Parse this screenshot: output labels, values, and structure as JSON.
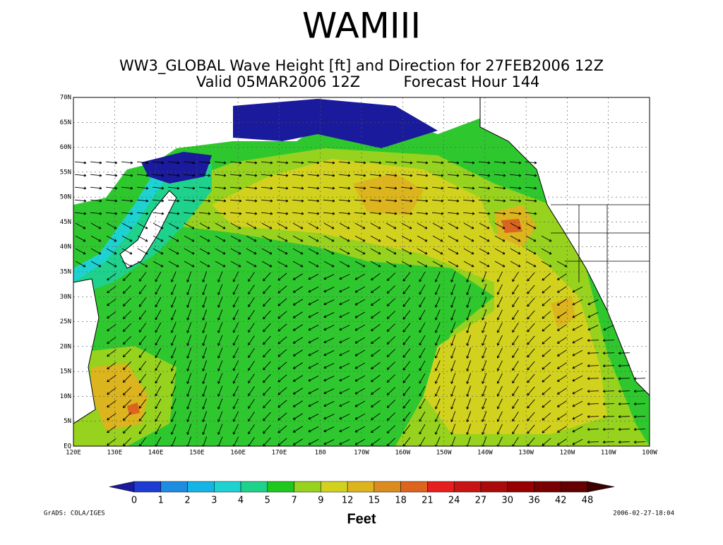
{
  "slide_title": "WAMIII",
  "map": {
    "title": "WW3_GLOBAL Wave Height [ft] and Direction for 27FEB2006 12Z",
    "valid": "Valid 05MAR2006 12Z",
    "forecast": "Forecast Hour 144",
    "lat_labels": [
      "70N",
      "65N",
      "60N",
      "55N",
      "50N",
      "45N",
      "40N",
      "35N",
      "30N",
      "25N",
      "20N",
      "15N",
      "10N",
      "5N",
      "EQ"
    ],
    "lon_labels": [
      "120E",
      "130E",
      "140E",
      "150E",
      "160E",
      "170E",
      "180",
      "170W",
      "160W",
      "150W",
      "140W",
      "130W",
      "120W",
      "110W",
      "100W"
    ]
  },
  "colorbar": {
    "levels": [
      "0",
      "1",
      "2",
      "3",
      "4",
      "5",
      "7",
      "9",
      "12",
      "15",
      "18",
      "21",
      "24",
      "27",
      "30",
      "36",
      "42",
      "48"
    ],
    "colors": [
      "#1a1a9c",
      "#1e3cd2",
      "#1e8ce0",
      "#14b4e6",
      "#1ed2d2",
      "#1ed28c",
      "#1ec81e",
      "#96d21e",
      "#d2d21e",
      "#dcb41e",
      "#dc8c1e",
      "#dc641e",
      "#e61e1e",
      "#c81414",
      "#aa0a0a",
      "#960000",
      "#780000",
      "#640000",
      "#3c0000"
    ],
    "unit": "Feet"
  },
  "footer": {
    "left": "GrADS: COLA/IGES",
    "right": "2006-02-27-18:04"
  }
}
